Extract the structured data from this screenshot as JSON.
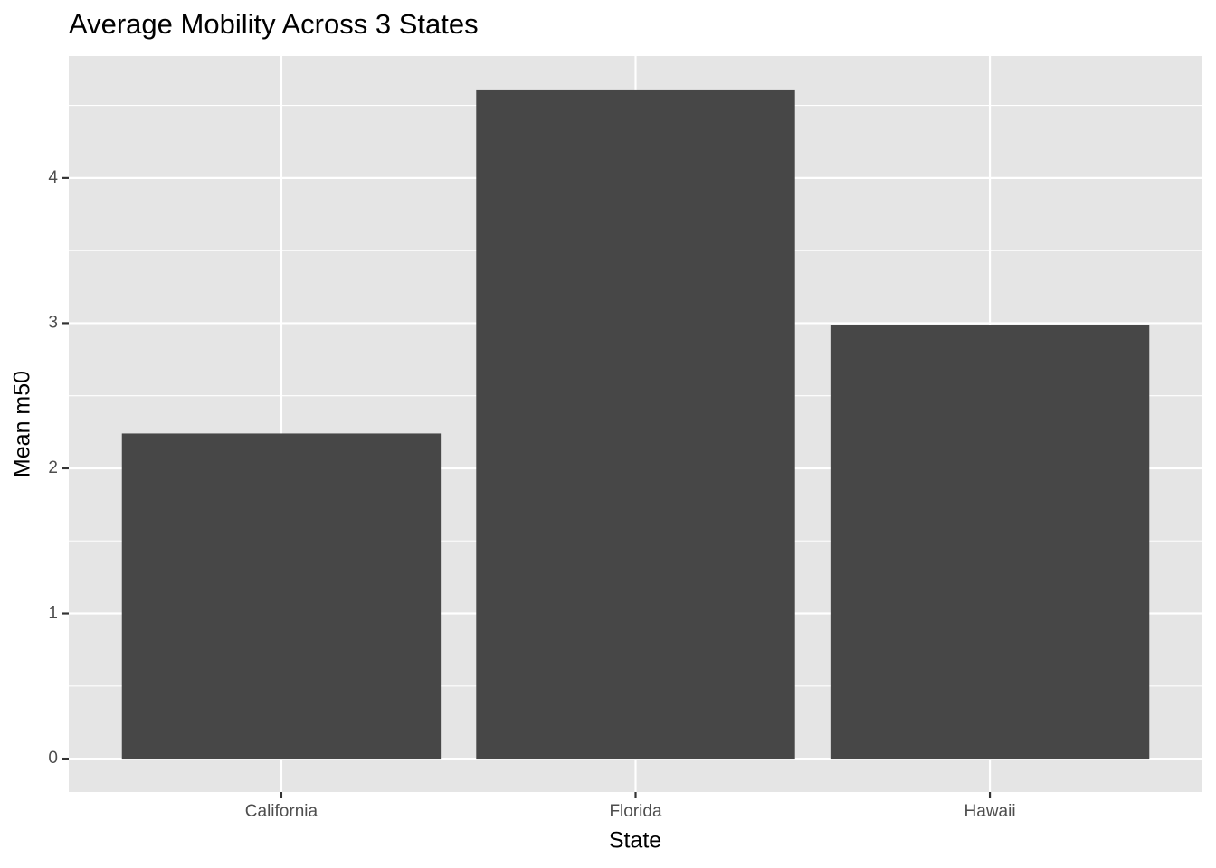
{
  "chart_data": {
    "type": "bar",
    "title": "Average Mobility Across 3 States",
    "x_label": "State",
    "y_label": "Mean m50",
    "categories": [
      "California",
      "Florida",
      "Hawaii"
    ],
    "values": [
      2.24,
      4.61,
      2.99
    ],
    "color": "#474747",
    "ylim": [
      -0.23,
      4.84
    ],
    "yticks": [
      0,
      1,
      2,
      3,
      4
    ],
    "minor_yticks": [
      0.5,
      1.5,
      2.5,
      3.5,
      4.5
    ],
    "grid": true
  }
}
